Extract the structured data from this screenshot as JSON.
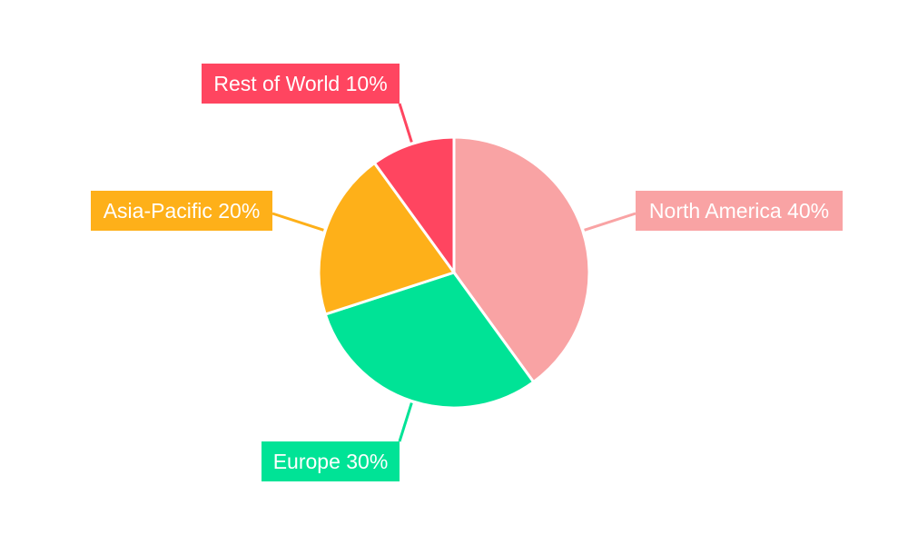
{
  "chart_data": {
    "type": "pie",
    "title": "",
    "categories": [
      "North America",
      "Europe",
      "Asia-Pacific",
      "Rest of World"
    ],
    "values": [
      40,
      30,
      20,
      10
    ],
    "labels": [
      "North America 40%",
      "Europe 30%",
      "Asia-Pacific 20%",
      "Rest of World 10%"
    ],
    "colors": [
      "#F9A3A4",
      "#00E396",
      "#FEB019",
      "#FF4560"
    ],
    "start_angle": "top",
    "direction": "clockwise",
    "legend": "none"
  }
}
